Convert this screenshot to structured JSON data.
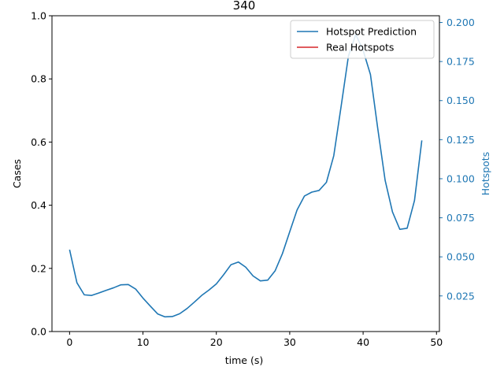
{
  "chart_data": {
    "type": "line",
    "title": "340",
    "xlabel": "time (s)",
    "ylabel": "Cases",
    "ylabel_right": "Hotspots",
    "xlim": [
      -2.4,
      50.4
    ],
    "ylim": [
      0,
      1.0
    ],
    "ylim_right": [
      0.0022,
      0.2043
    ],
    "x_ticks": [
      0,
      10,
      20,
      30,
      40,
      50
    ],
    "y_ticks": [
      0.0,
      0.2,
      0.4,
      0.6,
      0.8,
      1.0
    ],
    "y_ticks_right": [
      0.025,
      0.05,
      0.075,
      0.1,
      0.125,
      0.15,
      0.175,
      0.2
    ],
    "x_tick_labels": [
      "0",
      "10",
      "20",
      "30",
      "40",
      "50"
    ],
    "y_tick_labels": [
      "0.0",
      "0.2",
      "0.4",
      "0.6",
      "0.8",
      "1.0"
    ],
    "y_tick_labels_right": [
      "0.025",
      "0.050",
      "0.075",
      "0.100",
      "0.125",
      "0.150",
      "0.175",
      "0.200"
    ],
    "grid": false,
    "legend_position": "upper right",
    "series": [
      {
        "name": "Hotspot Prediction",
        "axis": "right",
        "color": "#1f77b4",
        "x": [
          0,
          1,
          2,
          3,
          4,
          5,
          6,
          7,
          8,
          9,
          10,
          11,
          12,
          13,
          14,
          15,
          16,
          17,
          18,
          19,
          20,
          21,
          22,
          23,
          24,
          25,
          26,
          27,
          28,
          29,
          30,
          31,
          32,
          33,
          34,
          35,
          36,
          37,
          38,
          39,
          40,
          41,
          42,
          43,
          44,
          45,
          46,
          47,
          48
        ],
        "values": [
          0.0546,
          0.0334,
          0.0257,
          0.0253,
          0.0269,
          0.0286,
          0.0302,
          0.0321,
          0.0323,
          0.0294,
          0.0236,
          0.0185,
          0.0135,
          0.0116,
          0.0118,
          0.0136,
          0.0169,
          0.021,
          0.0253,
          0.0288,
          0.0327,
          0.0386,
          0.045,
          0.0467,
          0.0434,
          0.0378,
          0.0346,
          0.0351,
          0.041,
          0.052,
          0.0661,
          0.08,
          0.0889,
          0.0914,
          0.0925,
          0.0977,
          0.1147,
          0.1462,
          0.1785,
          0.1923,
          0.1822,
          0.1667,
          0.132,
          0.099,
          0.0788,
          0.0676,
          0.0683,
          0.086,
          0.1245
        ]
      },
      {
        "name": "Real Hotspots",
        "axis": "left",
        "color": "#d62728",
        "x": [],
        "values": []
      }
    ]
  }
}
